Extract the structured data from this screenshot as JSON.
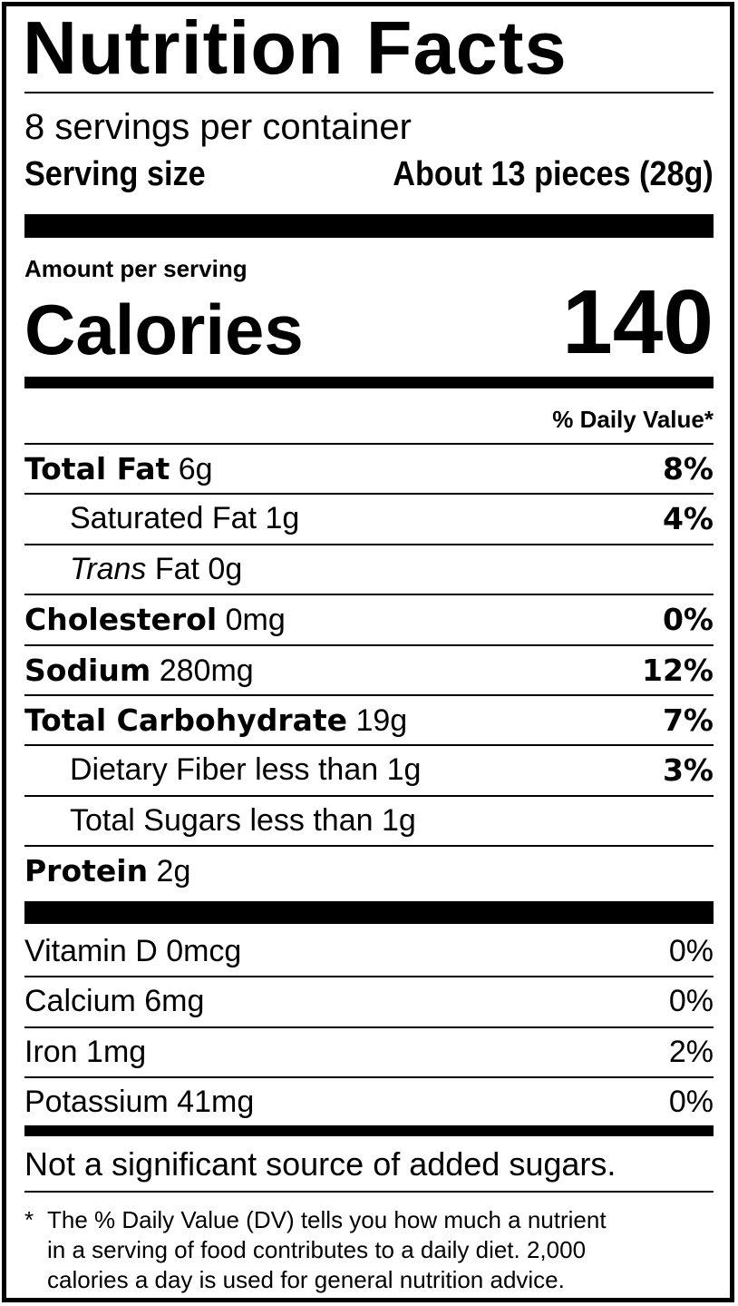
{
  "title": "Nutrition Facts",
  "servings": "8 servings per container",
  "serving_size": {
    "label": "Serving size",
    "value": "About 13 pieces (28g)"
  },
  "amount_per_serving": "Amount per serving",
  "calories": {
    "label": "Calories",
    "value": "140"
  },
  "daily_value_header": "% Daily Value*",
  "nutrients": [
    {
      "name": "Total Fat",
      "amount": "6g",
      "dv": "8%",
      "bold": true
    },
    {
      "name": "Saturated Fat",
      "amount": "1g",
      "dv": "4%",
      "indent": true
    },
    {
      "italic": "Trans",
      "name": "Fat",
      "amount": "0g",
      "indent": true
    },
    {
      "name": "Cholesterol",
      "amount": "0mg",
      "dv": "0%",
      "bold": true
    },
    {
      "name": "Sodium",
      "amount": "280mg",
      "dv": "12%",
      "bold": true
    },
    {
      "name": "Total Carbohydrate",
      "amount": "19g",
      "dv": "7%",
      "bold": true
    },
    {
      "name": "Dietary Fiber",
      "amount": "less than 1g",
      "dv": "3%",
      "indent": true
    },
    {
      "name": "Total Sugars",
      "amount": "less than 1g",
      "indent": true
    },
    {
      "name": "Protein",
      "amount": "2g",
      "bold": true
    }
  ],
  "vitamins": [
    {
      "name": "Vitamin D 0mcg",
      "dv": "0%"
    },
    {
      "name": "Calcium 6mg",
      "dv": "0%"
    },
    {
      "name": "Iron 1mg",
      "dv": "2%"
    },
    {
      "name": "Potassium 41mg",
      "dv": "0%"
    }
  ],
  "note": "Not a significant source of added sugars.",
  "footnote": {
    "mark": "*",
    "lines": [
      "The % Daily Value (DV) tells you how much a nutrient",
      "in a serving of food contributes to a daily diet. 2,000",
      "calories a day is used for general nutrition advice."
    ]
  }
}
